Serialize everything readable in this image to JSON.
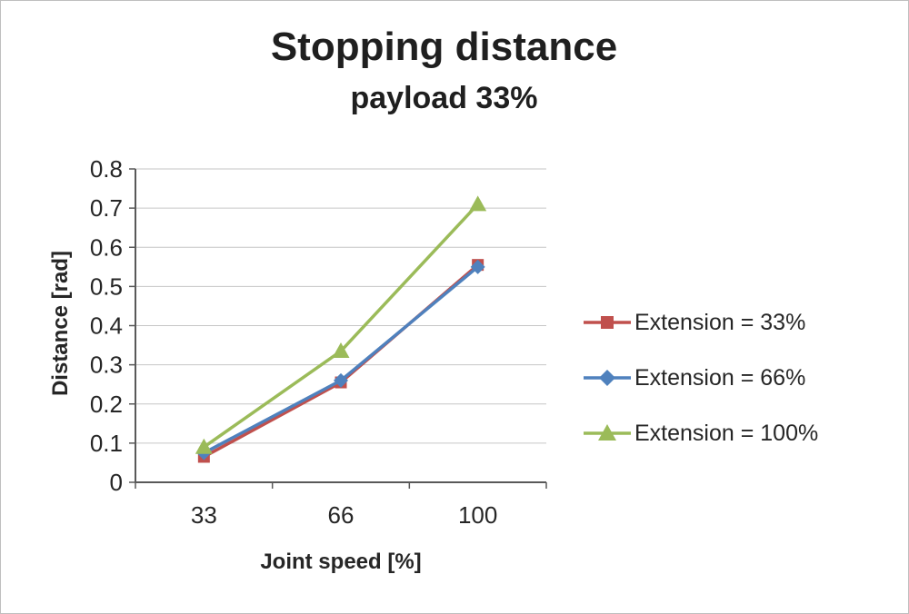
{
  "chart": {
    "title": "Stopping distance",
    "subtitle": "payload 33%"
  },
  "chart_data": {
    "type": "line",
    "categories": [
      33,
      66,
      100
    ],
    "x_tick_labels": [
      "33",
      "66",
      "100"
    ],
    "series": [
      {
        "name": "Extension = 33%",
        "values": [
          0.065,
          0.255,
          0.555
        ],
        "color": "#C0504D",
        "marker": "square"
      },
      {
        "name": "Extension = 66%",
        "values": [
          0.075,
          0.26,
          0.55
        ],
        "color": "#4F81BD",
        "marker": "diamond"
      },
      {
        "name": "Extension = 100%",
        "values": [
          0.09,
          0.335,
          0.71
        ],
        "color": "#9BBB59",
        "marker": "triangle"
      }
    ],
    "xlabel": "Joint speed [%]",
    "ylabel": "Distance [rad]",
    "ylim": [
      0,
      0.8
    ],
    "ytick_step": 0.1,
    "grid": true,
    "legend_position": "right"
  },
  "style": {
    "axis_color": "#595959",
    "gridline_color": "#c6c6c6",
    "tick_label_color": "#262626"
  }
}
